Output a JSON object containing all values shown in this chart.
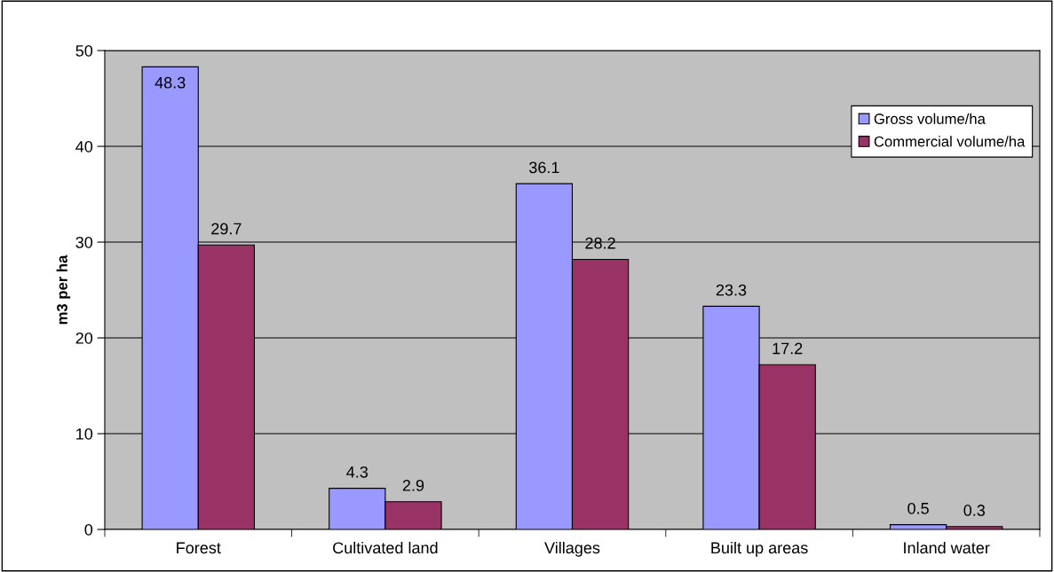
{
  "chart_data": {
    "type": "bar",
    "ylabel": "m3 per ha",
    "categories": [
      "Forest",
      "Cultivated land",
      "Villages",
      "Built up areas",
      "Inland water"
    ],
    "series": [
      {
        "name": "Gross volume/ha",
        "color": "#9999ff",
        "values": [
          48.3,
          4.3,
          36.1,
          23.3,
          0.5
        ]
      },
      {
        "name": "Commercial volume/ha",
        "color": "#993366",
        "values": [
          29.7,
          2.9,
          28.2,
          17.2,
          0.3
        ]
      }
    ],
    "ylim": [
      0,
      50
    ],
    "yticks": [
      0,
      10,
      20,
      30,
      40,
      50
    ],
    "grid": "y",
    "legend": "top right",
    "data_labels": true
  }
}
